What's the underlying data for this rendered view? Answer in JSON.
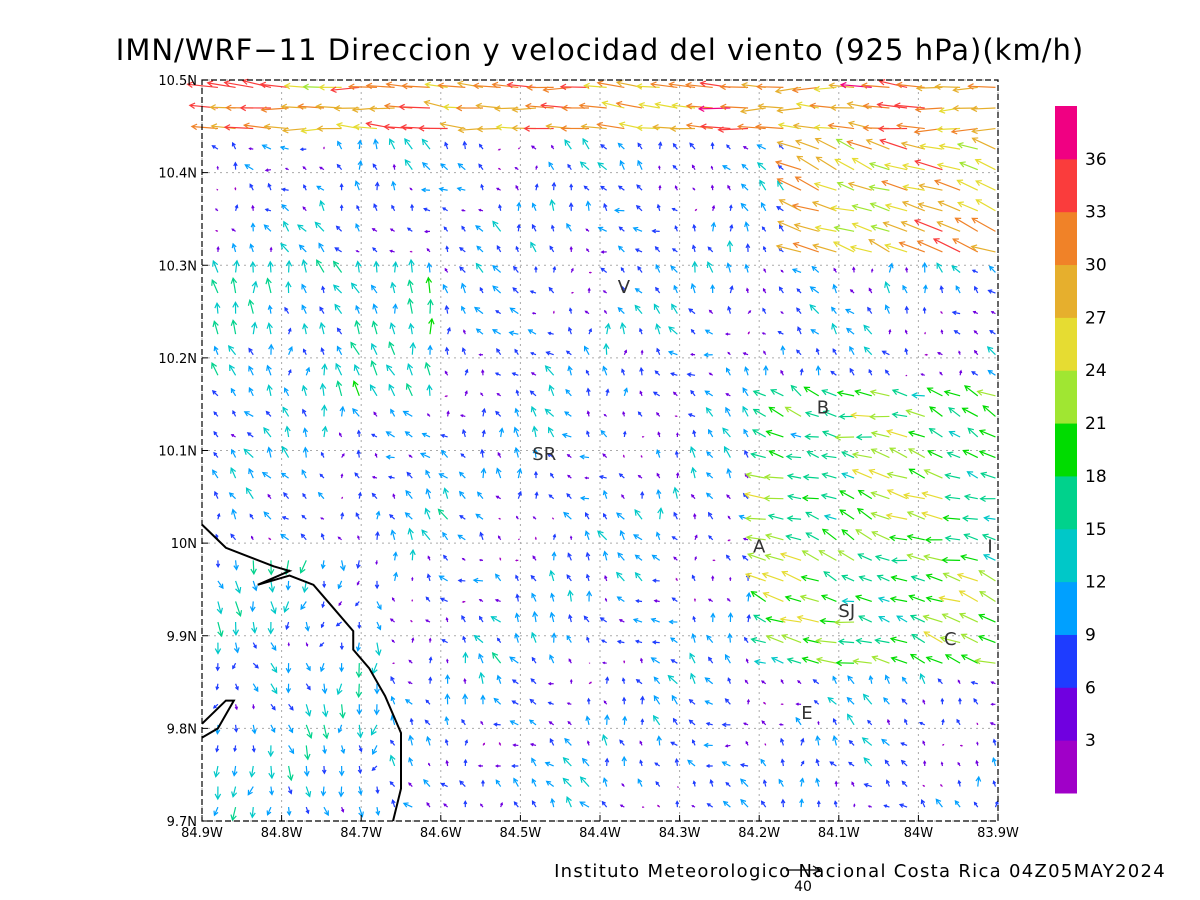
{
  "title": "IMN/WRF−11 Direccion y velocidad del viento (925 hPa)(km/h)",
  "footer": "Instituto Meteorologico Nacional Costa Rica 04Z05MAY2024",
  "reference_vector": {
    "value": 40,
    "label": "40"
  },
  "axes": {
    "x_range": [
      -84.9,
      -83.9
    ],
    "y_range": [
      9.7,
      10.5
    ],
    "x_ticks": [
      {
        "value": -84.9,
        "label": "84.9W"
      },
      {
        "value": -84.8,
        "label": "84.8W"
      },
      {
        "value": -84.7,
        "label": "84.7W"
      },
      {
        "value": -84.6,
        "label": "84.6W"
      },
      {
        "value": -84.5,
        "label": "84.5W"
      },
      {
        "value": -84.4,
        "label": "84.4W"
      },
      {
        "value": -84.3,
        "label": "84.3W"
      },
      {
        "value": -84.2,
        "label": "84.2W"
      },
      {
        "value": -84.1,
        "label": "84.1W"
      },
      {
        "value": -84.0,
        "label": "84W"
      },
      {
        "value": -83.9,
        "label": "83.9W"
      }
    ],
    "y_ticks": [
      {
        "value": 9.7,
        "label": "9.7N"
      },
      {
        "value": 9.8,
        "label": "9.8N"
      },
      {
        "value": 9.9,
        "label": "9.9N"
      },
      {
        "value": 10.0,
        "label": "10N"
      },
      {
        "value": 10.1,
        "label": "10.1N"
      },
      {
        "value": 10.2,
        "label": "10.2N"
      },
      {
        "value": 10.3,
        "label": "10.3N"
      },
      {
        "value": 10.4,
        "label": "10.4N"
      },
      {
        "value": 10.5,
        "label": "10.5N"
      }
    ],
    "grid": true
  },
  "colorbar": {
    "labels": [
      "3",
      "6",
      "9",
      "12",
      "15",
      "18",
      "21",
      "24",
      "27",
      "30",
      "33",
      "36"
    ],
    "bins": [
      {
        "max": 3,
        "color": "#a000c8"
      },
      {
        "max": 6,
        "color": "#7000e0"
      },
      {
        "max": 9,
        "color": "#1e3cff"
      },
      {
        "max": 12,
        "color": "#00a0ff"
      },
      {
        "max": 15,
        "color": "#00c8c8"
      },
      {
        "max": 18,
        "color": "#00d28c"
      },
      {
        "max": 21,
        "color": "#00dc00"
      },
      {
        "max": 24,
        "color": "#a0e632"
      },
      {
        "max": 27,
        "color": "#e6dc32"
      },
      {
        "max": 30,
        "color": "#e6af2d"
      },
      {
        "max": 33,
        "color": "#f08228"
      },
      {
        "max": 36,
        "color": "#fa3c3c"
      },
      {
        "max": 99,
        "color": "#f00082"
      }
    ]
  },
  "cities": [
    {
      "label": "V",
      "lon": -84.37,
      "lat": 10.27
    },
    {
      "label": "B",
      "lon": -84.12,
      "lat": 10.14
    },
    {
      "label": "SR",
      "lon": -84.47,
      "lat": 10.09
    },
    {
      "label": "A",
      "lon": -84.2,
      "lat": 9.99
    },
    {
      "label": "I",
      "lon": -83.91,
      "lat": 9.99
    },
    {
      "label": "SJ",
      "lon": -84.09,
      "lat": 9.92
    },
    {
      "label": "C",
      "lon": -83.96,
      "lat": 9.89
    },
    {
      "label": "E",
      "lon": -84.14,
      "lat": 9.81
    }
  ],
  "coastline": [
    [
      [
        -84.9,
        10.02
      ],
      [
        -84.87,
        9.995
      ],
      [
        -84.84,
        9.985
      ],
      [
        -84.81,
        9.975
      ],
      [
        -84.79,
        9.97
      ],
      [
        -84.83,
        9.955
      ],
      [
        -84.79,
        9.965
      ],
      [
        -84.76,
        9.955
      ],
      [
        -84.74,
        9.935
      ],
      [
        -84.71,
        9.905
      ],
      [
        -84.71,
        9.885
      ],
      [
        -84.69,
        9.865
      ],
      [
        -84.67,
        9.835
      ],
      [
        -84.65,
        9.795
      ],
      [
        -84.65,
        9.735
      ],
      [
        -84.66,
        9.7
      ]
    ],
    [
      [
        -84.9,
        9.805
      ],
      [
        -84.87,
        9.83
      ],
      [
        -84.86,
        9.83
      ],
      [
        -84.88,
        9.8
      ],
      [
        -84.9,
        9.79
      ]
    ]
  ],
  "chart_data": {
    "type": "vector_field",
    "variable": "Direccion y velocidad del viento",
    "level": "925 hPa",
    "units": "km/h",
    "x_range": [
      -84.9,
      -83.9
    ],
    "y_range": [
      9.7,
      10.5
    ],
    "grid": {
      "lon_start": -84.88,
      "lon_step": 0.0222,
      "nx": 45,
      "lat_start": 9.715,
      "lat_step": 0.0222,
      "ny": 36
    },
    "wind_regimes": [
      {
        "zone": "north_band",
        "lat_min": 10.43,
        "u": -30,
        "v": 2
      },
      {
        "zone": "northeast_corner",
        "lon_min": -84.15,
        "lat_min": 10.3,
        "u": -26,
        "v": 10
      },
      {
        "zone": "east_convergence",
        "lon_min": -84.2,
        "lat_min": 9.86,
        "lat_max": 10.18,
        "u": -18,
        "v": 6
      },
      {
        "zone": "southwest_coast",
        "lon_max": -84.66,
        "lat_max": 10.0,
        "u": 0,
        "v": -10
      },
      {
        "zone": "west_mountains",
        "lon_max": -84.6,
        "lat_min": 10.15,
        "lat_max": 10.3,
        "u": -3,
        "v": 12
      },
      {
        "zone": "interior",
        "u": -4,
        "v": 6
      }
    ]
  }
}
